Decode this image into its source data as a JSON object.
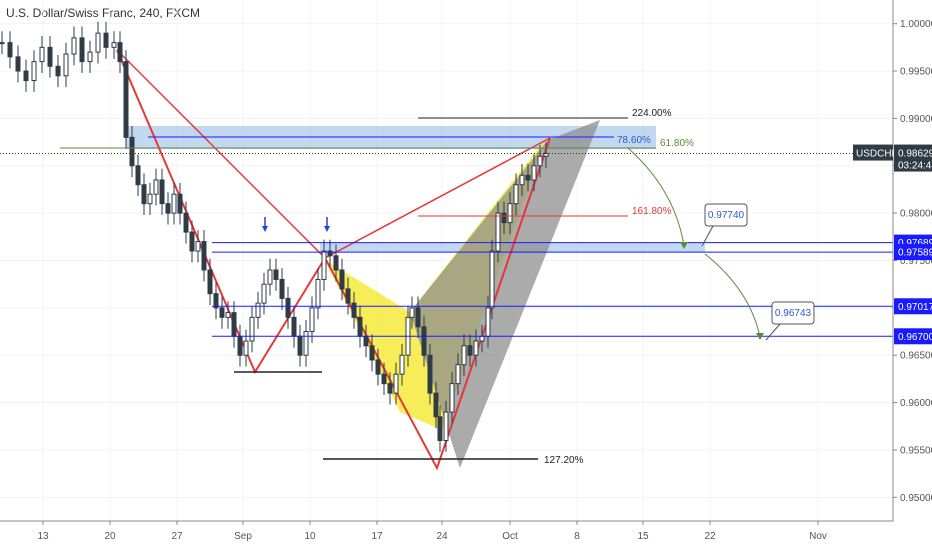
{
  "header": {
    "title": "U.S. Dollar/Swiss Franc, 240, FXCM"
  },
  "chart_data": {
    "type": "candlestick",
    "symbol": "USDCHF",
    "ylim": [
      0.9475,
      1.0025
    ],
    "y_ticks": [
      "1.00000",
      "0.99500",
      "0.99000",
      "0.98500",
      "0.98000",
      "0.97500",
      "0.97000",
      "0.96500",
      "0.96000",
      "0.95500",
      "0.95000"
    ],
    "x_ticks": [
      "13",
      "20",
      "27",
      "Sep",
      "10",
      "17",
      "24",
      "Oct",
      "8",
      "15",
      "22",
      "Nov"
    ],
    "price_badge": {
      "label": "USDCHF",
      "value": "0.98629",
      "countdown": "03:24:44"
    },
    "level_badges": [
      "0.97689",
      "0.97589",
      "0.97017",
      "0.96700"
    ],
    "fib_labels": {
      "ext_224": "224.00%",
      "ext_161": "161.80%",
      "ret_786": "78.60%",
      "ret_618": "61.80%",
      "ext_127": "127.20%"
    },
    "callouts": [
      "0.97740",
      "0.96743"
    ],
    "colors": {
      "up": "#2f3b45",
      "down": "#2f3b45",
      "pattern": "#e53935",
      "yellow": "#f5ea3c",
      "gray": "#8f8f8f",
      "zone": "#8fb8e6",
      "level_line": "#1a1aff",
      "arrow": "#2a3fe0",
      "curve": "#5d8a3a"
    }
  }
}
